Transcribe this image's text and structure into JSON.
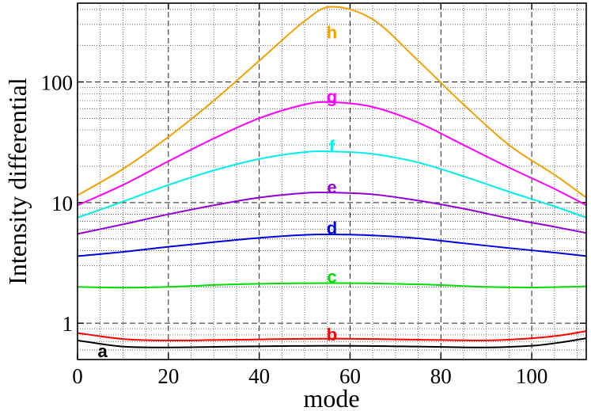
{
  "chart_data": {
    "type": "line",
    "xlabel": "mode",
    "ylabel": "Intensity differential",
    "xlim": [
      0,
      112
    ],
    "ylim": [
      0.5,
      450
    ],
    "yscale": "log",
    "grid": true,
    "x_ticks": [
      0,
      20,
      40,
      60,
      80,
      100
    ],
    "x_tick_labels": [
      "0",
      "20",
      "40",
      "60",
      "80",
      "100"
    ],
    "y_ticks": [
      1,
      10,
      100
    ],
    "y_tick_labels": [
      "1",
      "10",
      "100"
    ],
    "series": [
      {
        "name": "a",
        "color": "#000000",
        "x": [
          0,
          10,
          20,
          35,
          56,
          75,
          90,
          100,
          106,
          112
        ],
        "values": [
          0.72,
          0.64,
          0.63,
          0.64,
          0.65,
          0.64,
          0.63,
          0.65,
          0.69,
          0.75
        ]
      },
      {
        "name": "b",
        "color": "#ff0000",
        "x": [
          0,
          10,
          20,
          35,
          56,
          75,
          90,
          100,
          106,
          112
        ],
        "values": [
          0.83,
          0.74,
          0.72,
          0.73,
          0.745,
          0.73,
          0.72,
          0.75,
          0.79,
          0.86
        ]
      },
      {
        "name": "c",
        "color": "#00dd00",
        "x": [
          0,
          10,
          20,
          35,
          56,
          75,
          90,
          100,
          112
        ],
        "values": [
          2.0,
          1.97,
          2.0,
          2.1,
          2.15,
          2.1,
          2.0,
          1.98,
          2.02
        ]
      },
      {
        "name": "d",
        "color": "#0000dd",
        "x": [
          0,
          10,
          20,
          30,
          40,
          50,
          56,
          65,
          75,
          85,
          95,
          105,
          112
        ],
        "values": [
          3.6,
          3.9,
          4.3,
          4.7,
          5.1,
          5.4,
          5.45,
          5.35,
          5.05,
          4.6,
          4.2,
          3.85,
          3.6
        ]
      },
      {
        "name": "e",
        "color": "#9400d3",
        "x": [
          0,
          10,
          20,
          30,
          40,
          50,
          56,
          65,
          75,
          85,
          95,
          105,
          112
        ],
        "values": [
          5.5,
          6.6,
          8.0,
          9.5,
          11.0,
          12.0,
          12.1,
          11.7,
          10.4,
          8.9,
          7.4,
          6.3,
          5.6
        ]
      },
      {
        "name": "f",
        "color": "#00eeee",
        "x": [
          0,
          10,
          20,
          30,
          40,
          50,
          56,
          65,
          75,
          85,
          95,
          105,
          112
        ],
        "values": [
          7.5,
          10.2,
          14.0,
          18.5,
          23.0,
          26.2,
          26.5,
          25.3,
          21.5,
          16.5,
          12.3,
          9.3,
          7.5
        ]
      },
      {
        "name": "g",
        "color": "#ff00ff",
        "x": [
          0,
          10,
          20,
          30,
          40,
          50,
          56,
          65,
          75,
          85,
          95,
          105,
          112
        ],
        "values": [
          9.5,
          14.0,
          22.0,
          34.0,
          50.0,
          65.0,
          68.0,
          62.0,
          46.0,
          30.0,
          19.5,
          13.0,
          9.5
        ]
      },
      {
        "name": "h",
        "color": "#f5a000",
        "x": [
          0,
          10,
          20,
          30,
          40,
          50,
          56,
          65,
          75,
          85,
          95,
          105,
          112
        ],
        "values": [
          11.5,
          19.0,
          35.0,
          70.0,
          150.0,
          320.0,
          420.0,
          330.0,
          150.0,
          65.0,
          30.0,
          17.0,
          11.0
        ]
      }
    ],
    "annotations": [
      {
        "text": "a",
        "x": 5.5,
        "y": 0.59,
        "color": "#000000"
      },
      {
        "text": "b",
        "x": 56,
        "y": 0.81,
        "color": "#ff0000"
      },
      {
        "text": "c",
        "x": 56,
        "y": 2.45,
        "color": "#00dd00"
      },
      {
        "text": "d",
        "x": 56,
        "y": 6.2,
        "color": "#0000dd"
      },
      {
        "text": "e",
        "x": 56,
        "y": 13.5,
        "color": "#9400d3"
      },
      {
        "text": "f",
        "x": 56,
        "y": 29.5,
        "color": "#00eeee"
      },
      {
        "text": "g",
        "x": 56,
        "y": 76,
        "color": "#ff00ff"
      },
      {
        "text": "h",
        "x": 56,
        "y": 260,
        "color": "#f5a000"
      }
    ]
  }
}
